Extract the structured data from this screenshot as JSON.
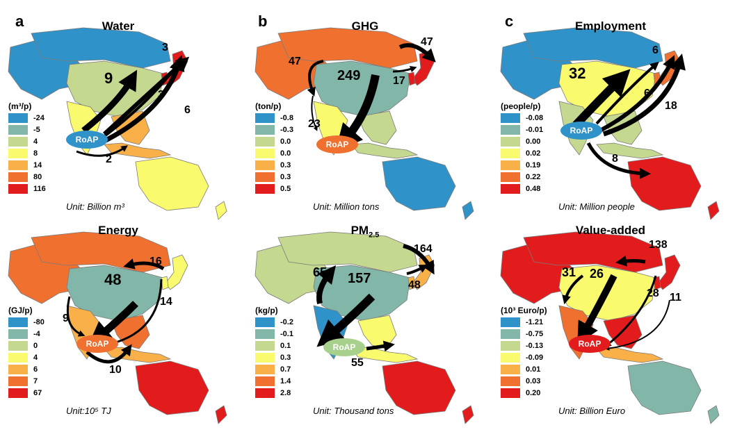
{
  "palette": {
    "c1": "#2f93c9",
    "c2": "#82b6a8",
    "c3": "#c4d88f",
    "c4": "#fafa6e",
    "c5": "#f9b048",
    "c6": "#f07030",
    "c7": "#e21c1c"
  },
  "panels": [
    {
      "letter": "a",
      "title": "Water",
      "legend_unit": "(m³/p)",
      "legend": [
        "-24",
        "-5",
        "4",
        "8",
        "14",
        "80",
        "116"
      ],
      "unit": "Unit: Billion m³",
      "flows": [
        "9",
        "3",
        "3",
        "6",
        "2"
      ],
      "roap_color": "#2f93c9",
      "regions": {
        "russia": "c1",
        "china": "c3",
        "india": "c4",
        "sea": "c5",
        "australia": "c4",
        "japan": "c7",
        "korea": "c7",
        "indonesia": "c5",
        "west": "c1"
      }
    },
    {
      "letter": "b",
      "title": "GHG",
      "legend_unit": "(ton/p)",
      "legend": [
        "-0.8",
        "-0.3",
        "0.0",
        "0.0",
        "0.3",
        "0.3",
        "0.5"
      ],
      "unit": "Unit: Million tons",
      "flows": [
        "47",
        "249",
        "47",
        "17",
        "23"
      ],
      "roap_color": "#f07030",
      "regions": {
        "russia": "c6",
        "china": "c2",
        "india": "c4",
        "sea": "c3",
        "australia": "c1",
        "japan": "c7",
        "korea": "c7",
        "indonesia": "c3",
        "west": "c6"
      }
    },
    {
      "letter": "c",
      "title": "Employment",
      "legend_unit": "(people/p)",
      "legend": [
        "-0.08",
        "-0.01",
        "0.00",
        "0.02",
        "0.19",
        "0.22",
        "0.48"
      ],
      "unit": "Unit: Million people",
      "flows": [
        "32",
        "6",
        "6",
        "18",
        "8"
      ],
      "roap_color": "#2f93c9",
      "regions": {
        "russia": "c1",
        "china": "c4",
        "india": "c3",
        "sea": "c3",
        "australia": "c7",
        "japan": "c6",
        "korea": "c6",
        "indonesia": "c3",
        "west": "c1"
      }
    },
    {
      "title": "Energy",
      "legend_unit": "(GJ/p)",
      "legend": [
        "-80",
        "-4",
        "0",
        "4",
        "6",
        "7",
        "67"
      ],
      "unit": "Unit:10⁵ TJ",
      "flows": [
        "48",
        "16",
        "14",
        "9",
        "10"
      ],
      "roap_color": "#f07030",
      "regions": {
        "russia": "c6",
        "china": "c2",
        "india": "c5",
        "sea": "c6",
        "australia": "c7",
        "japan": "c4",
        "korea": "c4",
        "indonesia": "c5",
        "west": "c6"
      }
    },
    {
      "title": "PM",
      "title_sub": "2.5",
      "legend_unit": "(kg/p)",
      "legend": [
        "-0.2",
        "-0.1",
        "0.1",
        "0.3",
        "0.7",
        "1.4",
        "2.8"
      ],
      "unit": "Unit: Thousand tons",
      "flows": [
        "65",
        "157",
        "164",
        "48",
        "55"
      ],
      "roap_color": "#a8d08d",
      "regions": {
        "russia": "c3",
        "china": "c2",
        "india": "c1",
        "sea": "c4",
        "australia": "c7",
        "japan": "c5",
        "korea": "c5",
        "indonesia": "c4",
        "west": "c3"
      }
    },
    {
      "title": "Value-added",
      "legend_unit": "(10³ Euro/p)",
      "legend": [
        "-1.21",
        "-0.75",
        "-0.13",
        "-0.09",
        "0.01",
        "0.03",
        "0.20"
      ],
      "unit": "Unit: Billion Euro",
      "flows": [
        "31",
        "26",
        "138",
        "28",
        "11"
      ],
      "roap_color": "#e21c1c",
      "regions": {
        "russia": "c7",
        "china": "c4",
        "india": "c6",
        "sea": "c7",
        "australia": "c2",
        "japan": "c7",
        "korea": "c7",
        "indonesia": "c5",
        "west": "c7"
      }
    }
  ],
  "roap_label": "RoAP"
}
